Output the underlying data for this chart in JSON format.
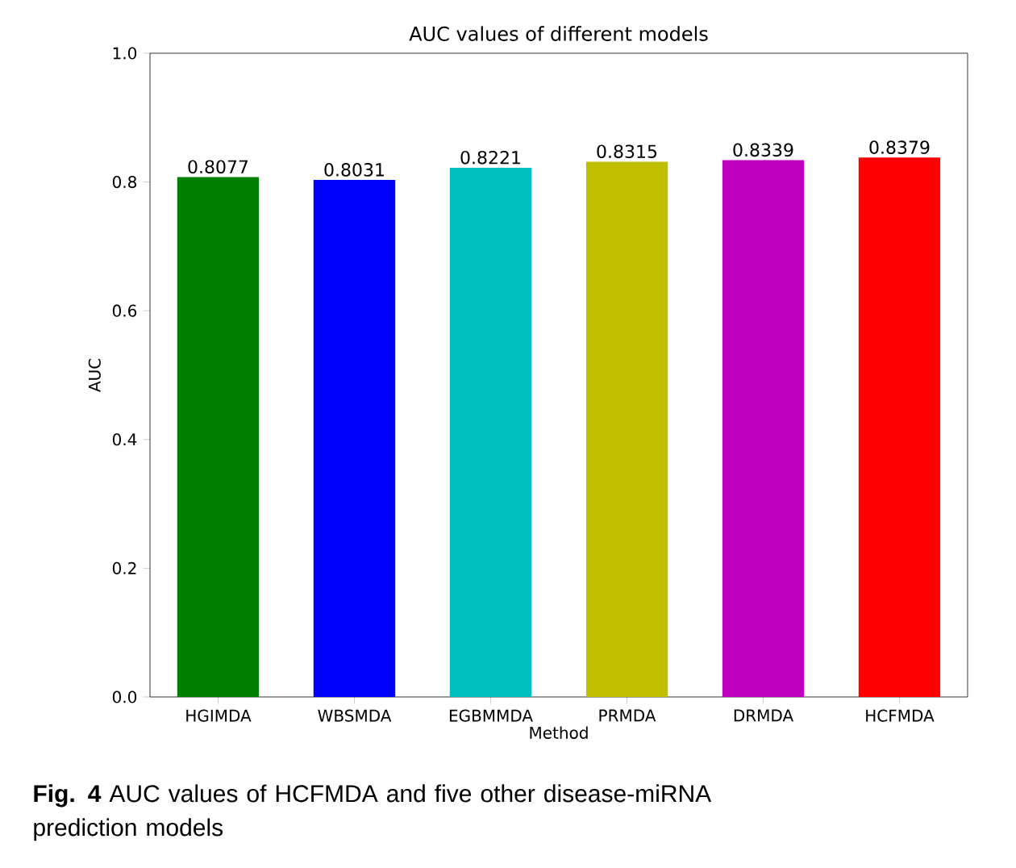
{
  "chart_data": {
    "type": "bar",
    "title": "AUC values of different models",
    "xlabel": "Method",
    "ylabel": "AUC",
    "categories": [
      "HGIMDA",
      "WBSMDA",
      "EGBMMDA",
      "PRMDA",
      "DRMDA",
      "HCFMDA"
    ],
    "values": [
      0.8077,
      0.8031,
      0.8221,
      0.8315,
      0.8339,
      0.8379
    ],
    "colors": [
      "#008000",
      "#0000ff",
      "#00bfbf",
      "#bfbf00",
      "#bf00bf",
      "#ff0000"
    ],
    "data_labels": true,
    "ylim": [
      0,
      1
    ],
    "yticks": [
      {
        "value": 0,
        "label": "0.0"
      },
      0.2,
      0.4,
      0.6,
      0.8,
      {
        "value": 1,
        "label": "1.0"
      }
    ],
    "annotations": [
      "**Fig. 4** AUC values of HCFMDA and five other disease-miRNA prediction models"
    ]
  }
}
